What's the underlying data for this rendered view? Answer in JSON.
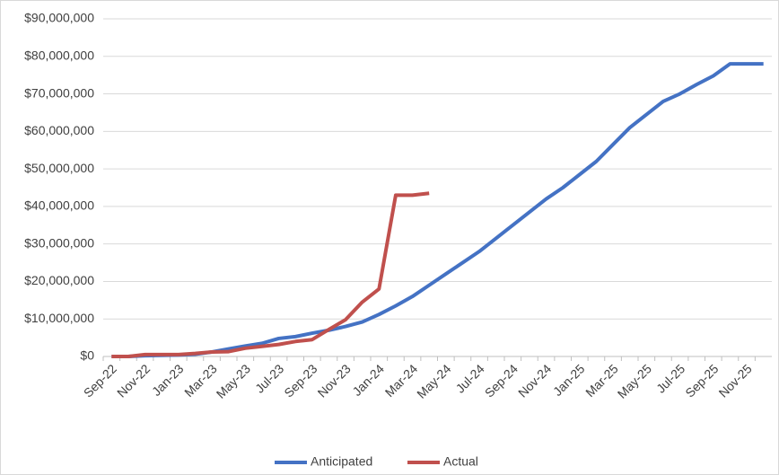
{
  "chart_data": {
    "type": "line",
    "categories": [
      "Sep-22",
      null,
      "Nov-22",
      null,
      "Jan-23",
      null,
      "Mar-23",
      null,
      "May-23",
      null,
      "Jul-23",
      null,
      "Sep-23",
      null,
      "Nov-23",
      null,
      "Jan-24",
      null,
      "Mar-24",
      null,
      "May-24",
      null,
      "Jul-24",
      null,
      "Sep-24",
      null,
      "Nov-24",
      null,
      "Jan-25",
      null,
      "Mar-25",
      null,
      "May-25",
      null,
      "Jul-25",
      null,
      "Sep-25",
      null,
      "Nov-25",
      null
    ],
    "series": [
      {
        "name": "Anticipated",
        "color": "#4472c4",
        "values": [
          0,
          0,
          200000,
          300000,
          400000,
          600000,
          1200000,
          2000000,
          2800000,
          3500000,
          4800000,
          5300000,
          6200000,
          7000000,
          8000000,
          9200000,
          11200000,
          13500000,
          16000000,
          19000000,
          22000000,
          25000000,
          28000000,
          31500000,
          35000000,
          38500000,
          42000000,
          45000000,
          48500000,
          52000000,
          56500000,
          61000000,
          64500000,
          68000000,
          70000000,
          72500000,
          74800000,
          78000000,
          78000000,
          78000000
        ]
      },
      {
        "name": "Actual",
        "color": "#c0504d",
        "values": [
          0,
          0,
          500000,
          500000,
          500000,
          800000,
          1200000,
          1300000,
          2200000,
          2700000,
          3200000,
          4000000,
          4500000,
          7200000,
          9800000,
          14500000,
          18000000,
          43000000,
          43000000,
          43500000,
          null,
          null,
          null,
          null,
          null,
          null,
          null,
          null,
          null,
          null,
          null,
          null,
          null,
          null,
          null,
          null,
          null,
          null,
          null,
          null
        ]
      }
    ],
    "ylim": [
      0,
      90000000
    ],
    "yticks": [
      {
        "value": 0,
        "label": "$0"
      },
      {
        "value": 10000000,
        "label": "$10,000,000"
      },
      {
        "value": 20000000,
        "label": "$20,000,000"
      },
      {
        "value": 30000000,
        "label": "$30,000,000"
      },
      {
        "value": 40000000,
        "label": "$40,000,000"
      },
      {
        "value": 50000000,
        "label": "$50,000,000"
      },
      {
        "value": 60000000,
        "label": "$60,000,000"
      },
      {
        "value": 70000000,
        "label": "$70,000,000"
      },
      {
        "value": 80000000,
        "label": "$80,000,000"
      },
      {
        "value": 90000000,
        "label": "$90,000,000"
      }
    ],
    "grid": true,
    "legend": "bottom"
  }
}
